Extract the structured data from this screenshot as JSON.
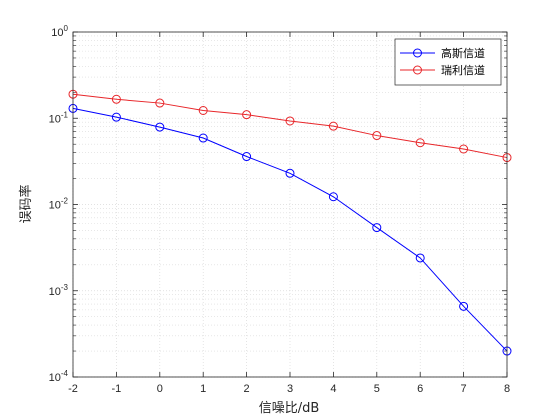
{
  "chart_data": {
    "type": "line",
    "title": "",
    "xlabel": "信噪比/dB",
    "ylabel": "误码率",
    "x": [
      -2,
      -1,
      0,
      1,
      2,
      3,
      4,
      5,
      6,
      7,
      8
    ],
    "xlim": [
      -2,
      8
    ],
    "ylim": [
      0.0001,
      1
    ],
    "yscale": "log",
    "grid": true,
    "legend_position": "top-right",
    "y_tick_labels": [
      {
        "base": "10",
        "exp": "0"
      },
      {
        "base": "10",
        "exp": "-1"
      },
      {
        "base": "10",
        "exp": "-2"
      },
      {
        "base": "10",
        "exp": "-3"
      },
      {
        "base": "10",
        "exp": "-4"
      }
    ],
    "series": [
      {
        "name": "高斯信道",
        "color": "#0000ff",
        "marker": "circle",
        "values": [
          0.13,
          0.103,
          0.079,
          0.059,
          0.036,
          0.023,
          0.0123,
          0.0054,
          0.0024,
          0.00066,
          0.0002
        ]
      },
      {
        "name": "瑞利信道",
        "color": "#e8262a",
        "marker": "circle",
        "values": [
          0.19,
          0.166,
          0.15,
          0.123,
          0.11,
          0.093,
          0.081,
          0.063,
          0.052,
          0.044,
          0.035
        ]
      }
    ]
  }
}
